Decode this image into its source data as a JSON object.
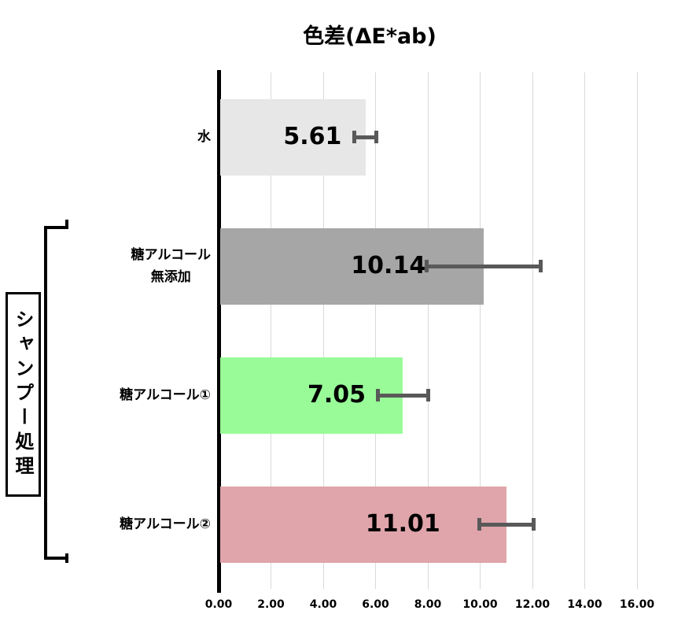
{
  "title": "色差(ΔE*ab)",
  "group_bracket": {
    "label": "シャンプー処理",
    "spans_categories": [
      "糖アルコール\n無添加",
      "糖アルコール①",
      "糖アルコール②"
    ]
  },
  "chart_data": {
    "type": "bar",
    "orientation": "horizontal",
    "title": "色差(ΔE*ab)",
    "categories": [
      "水",
      "糖アルコール\n無添加",
      "糖アルコール①",
      "糖アルコール②"
    ],
    "values": [
      5.61,
      10.14,
      7.05,
      11.01
    ],
    "value_labels": [
      "5.61",
      "10.14",
      "7.05",
      "11.01"
    ],
    "errors": [
      0.45,
      2.2,
      0.97,
      1.05
    ],
    "bar_colors": [
      "#e8e7e7",
      "#a6a6a6",
      "#98fb98",
      "#dfa5aa"
    ],
    "xlim": [
      0,
      16
    ],
    "grid_step": 2,
    "tick_labels": [
      "0.00",
      "2.00",
      "4.00",
      "6.00",
      "8.00",
      "10.00",
      "12.00",
      "14.00",
      "16.00"
    ],
    "xlabel": "",
    "ylabel": "",
    "grid": true,
    "grid_color": "#d9d9d9",
    "axis_color": "#000000",
    "error_bar_color": "#595959",
    "legend": null
  }
}
